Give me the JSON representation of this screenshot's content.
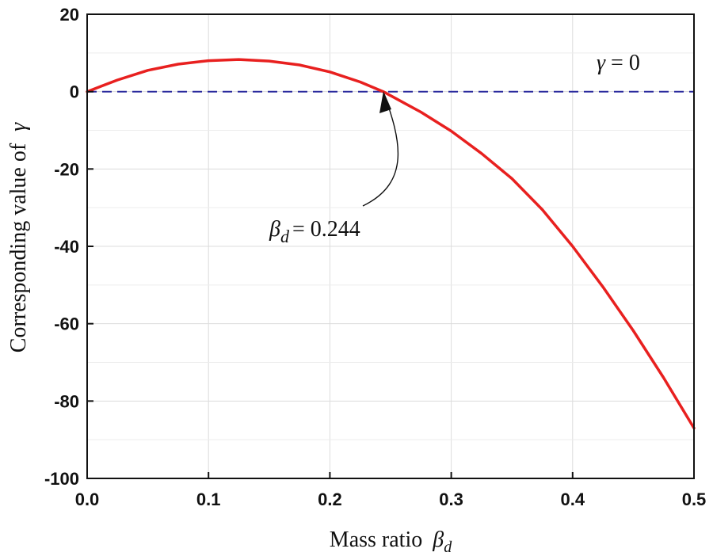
{
  "chart_data": {
    "type": "line",
    "title": "",
    "xlabel": "Mass ratio",
    "xlabel_symbol": "β",
    "xlabel_subscript": "d",
    "ylabel": "Corresponding value of",
    "ylabel_symbol": "γ",
    "xlim": [
      0,
      0.5
    ],
    "ylim": [
      -100,
      20
    ],
    "xticks": [
      0.0,
      0.1,
      0.2,
      0.3,
      0.4,
      0.5
    ],
    "xtick_labels": [
      "0.0",
      "0.1",
      "0.2",
      "0.3",
      "0.4",
      "0.5"
    ],
    "yticks": [
      20,
      0,
      -20,
      -40,
      -60,
      -80,
      -100
    ],
    "ytick_labels": [
      "20",
      "0",
      "-20",
      "-40",
      "-60",
      "-80",
      "-100"
    ],
    "grid": true,
    "series": [
      {
        "name": "gamma",
        "color": "#e8201f",
        "style": "solid",
        "x": [
          0.0,
          0.025,
          0.05,
          0.075,
          0.1,
          0.125,
          0.15,
          0.175,
          0.2,
          0.225,
          0.244,
          0.275,
          0.3,
          0.325,
          0.35,
          0.375,
          0.4,
          0.425,
          0.45,
          0.475,
          0.5
        ],
        "y": [
          0.0,
          3.0,
          5.5,
          7.1,
          8.0,
          8.3,
          7.9,
          6.9,
          5.1,
          2.5,
          0.0,
          -5.3,
          -10.2,
          -16.0,
          -22.5,
          -30.5,
          -40.0,
          -50.5,
          -61.8,
          -74.0,
          -87.0
        ]
      },
      {
        "name": "γ = 0",
        "color": "#2b2b9e",
        "style": "dashed",
        "x": [
          0.0,
          0.5
        ],
        "y": [
          0,
          0
        ]
      }
    ],
    "annotations": [
      {
        "id": "zero-line-label",
        "symbol": "γ",
        "text": " = 0"
      },
      {
        "id": "root-label",
        "symbol": "β",
        "subscript": "d",
        "text": "= 0.244",
        "point": [
          0.244,
          0
        ]
      }
    ]
  }
}
